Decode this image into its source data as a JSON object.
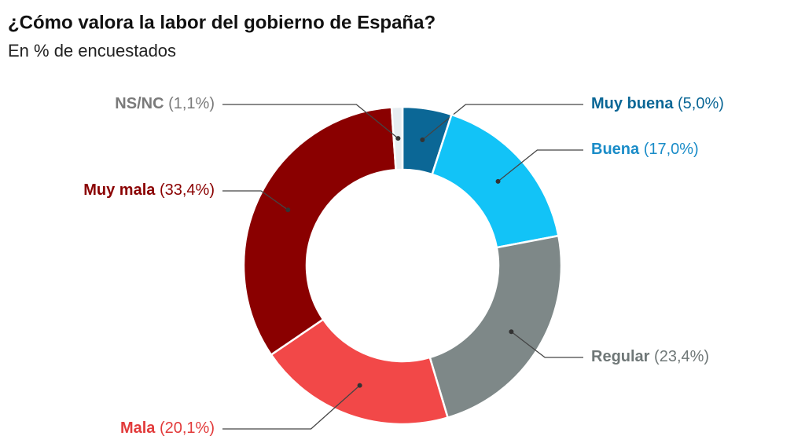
{
  "chart_data": {
    "type": "donut",
    "title": "¿Cómo valora la labor del gobierno de España?",
    "subtitle": "En % de encuestados",
    "categories": [
      "Muy buena",
      "Buena",
      "Regular",
      "Mala",
      "Muy mala",
      "NS/NC"
    ],
    "values": [
      5.0,
      17.0,
      23.4,
      20.1,
      33.4,
      1.1
    ],
    "value_labels": [
      "(5,0%)",
      "(17,0%)",
      "(23,4%)",
      "(20,1%)",
      "(33,4%)",
      "(1,1%)"
    ],
    "colors": [
      "#0b6796",
      "#12c3f7",
      "#7e8888",
      "#f24848",
      "#8a0000",
      "#e6edf1"
    ],
    "label_colors": [
      "#0b6796",
      "#1a8cc8",
      "#6f7777",
      "#e23b3b",
      "#8a0000",
      "#7a7a7a"
    ]
  }
}
